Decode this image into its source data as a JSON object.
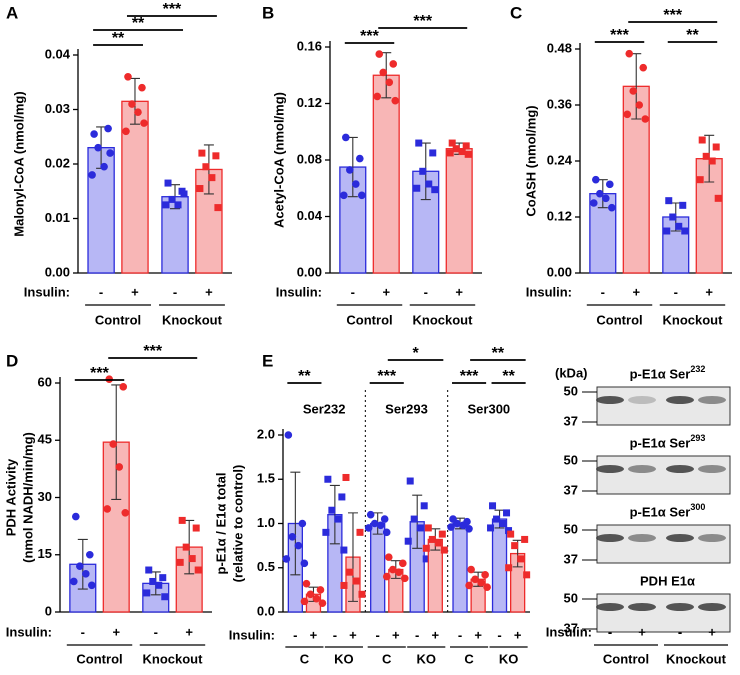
{
  "chart_data": [
    {
      "type": "bar",
      "panel": "A",
      "ylabel": "Malonyl-CoA (nmol/mg)",
      "ylim": [
        0,
        0.04
      ],
      "yticks": [
        {
          "value": 0,
          "label": "0.00"
        },
        0.01,
        0.02,
        0.03,
        0.04
      ],
      "values": [
        0.023,
        0.0315,
        0.014,
        0.019
      ],
      "errors": [
        0.0038,
        0.0042,
        0.0022,
        0.0045
      ],
      "points": [
        [
          0.0255,
          0.0265,
          0.023,
          0.0195,
          0.018,
          0.022
        ],
        [
          0.036,
          0.034,
          0.031,
          0.0295,
          0.026,
          0.0275
        ],
        [
          0.0165,
          0.015,
          0.0135,
          0.0125,
          0.0125,
          0.0145
        ],
        [
          0.022,
          0.0215,
          0.0195,
          0.0175,
          0.0155,
          0.012
        ]
      ],
      "colors": [
        "#2b2bdb",
        "#ee2b2b"
      ],
      "fills": [
        "#b7b7f5",
        "#f8b6b6"
      ],
      "brackets": [
        "**",
        "**",
        "***"
      ],
      "insulin_label": "Insulin:",
      "insulin": [
        "-",
        "+",
        "-",
        "+"
      ],
      "groups": [
        "Control",
        "Knockout"
      ]
    },
    {
      "type": "bar",
      "panel": "B",
      "ylabel": "Acetyl-CoA (nmol/mg)",
      "ylim": [
        0,
        0.16
      ],
      "yticks": [
        {
          "value": 0,
          "label": "0.00"
        },
        0.04,
        0.08,
        0.12,
        0.16
      ],
      "values": [
        0.075,
        0.14,
        0.072,
        0.088
      ],
      "errors": [
        0.021,
        0.016,
        0.02,
        0.004
      ],
      "points": [
        [
          0.096,
          0.081,
          0.073,
          0.063,
          0.055,
          0.055
        ],
        [
          0.155,
          0.148,
          0.142,
          0.135,
          0.125,
          0.122
        ],
        [
          0.092,
          0.085,
          0.072,
          0.063,
          0.06,
          0.059
        ],
        [
          0.092,
          0.09,
          0.088,
          0.086,
          0.085,
          0.084
        ]
      ],
      "colors": [
        "#2b2bdb",
        "#ee2b2b"
      ],
      "fills": [
        "#b7b7f5",
        "#f8b6b6"
      ],
      "brackets": [
        "***",
        "***"
      ],
      "insulin_label": "Insulin:",
      "insulin": [
        "-",
        "+",
        "-",
        "+"
      ],
      "groups": [
        "Control",
        "Knockout"
      ]
    },
    {
      "type": "bar",
      "panel": "C",
      "ylabel": "CoASH (nmol/mg)",
      "ylim": [
        0,
        0.48
      ],
      "yticks": [
        {
          "value": 0,
          "label": "0.00"
        },
        0.12,
        0.24,
        0.36,
        0.48
      ],
      "values": [
        0.17,
        0.4,
        0.12,
        0.245
      ],
      "errors": [
        0.03,
        0.07,
        0.03,
        0.05
      ],
      "points": [
        [
          0.2,
          0.19,
          0.17,
          0.16,
          0.15,
          0.14
        ],
        [
          0.47,
          0.44,
          0.39,
          0.36,
          0.34,
          0.33
        ],
        [
          0.155,
          0.145,
          0.12,
          0.1,
          0.09,
          0.09
        ],
        [
          0.285,
          0.27,
          0.25,
          0.24,
          0.2,
          0.16
        ]
      ],
      "colors": [
        "#2b2bdb",
        "#ee2b2b"
      ],
      "fills": [
        "#b7b7f5",
        "#f8b6b6"
      ],
      "brackets": [
        "***",
        "**",
        "***"
      ],
      "insulin_label": "Insulin:",
      "insulin": [
        "-",
        "+",
        "-",
        "+"
      ],
      "groups": [
        "Control",
        "Knockout"
      ]
    },
    {
      "type": "bar",
      "panel": "D",
      "ylabel": [
        "PDH Activity",
        "(nmol NADH/min/mg)"
      ],
      "ylim": [
        0,
        60
      ],
      "yticks": [
        0,
        15,
        30,
        45,
        60
      ],
      "values": [
        12.5,
        44.5,
        7.5,
        17
      ],
      "errors": [
        6.5,
        15,
        3,
        7
      ],
      "points": [
        [
          25,
          15,
          12,
          10,
          8,
          7
        ],
        [
          61,
          59,
          44,
          38,
          27,
          26
        ],
        [
          11,
          9,
          8,
          7,
          5,
          4
        ],
        [
          24,
          22,
          17,
          14,
          13,
          11
        ]
      ],
      "colors": [
        "#2b2bdb",
        "#ee2b2b"
      ],
      "fills": [
        "#b7b7f5",
        "#f8b6b6"
      ],
      "brackets": [
        "***",
        "***"
      ],
      "insulin_label": "Insulin:",
      "insulin": [
        "-",
        "+",
        "-",
        "+"
      ],
      "groups": [
        "Control",
        "Knockout"
      ]
    },
    {
      "type": "grouped-bar",
      "panel": "E",
      "ylabel": [
        "p-E1α / E1α total",
        "(relative to control)"
      ],
      "ylim": [
        0,
        2
      ],
      "yticks": [
        {
          "value": 0,
          "label": "0.0"
        },
        0.5,
        {
          "value": 1,
          "label": "1.0"
        },
        1.5,
        {
          "value": 2,
          "label": "2.0"
        }
      ],
      "values": [
        1.0,
        0.2,
        1.1,
        0.62,
        1.0,
        0.48,
        1.02,
        0.82,
        1.0,
        0.37,
        1.05,
        0.66
      ],
      "errors": [
        0.58,
        0.08,
        0.33,
        0.5,
        0.12,
        0.1,
        0.3,
        0.12,
        0.06,
        0.08,
        0.1,
        0.15
      ],
      "points": [
        [
          2.0,
          1.0,
          0.85,
          0.75,
          0.6,
          0.55
        ],
        [
          0.32,
          0.25,
          0.2,
          0.15,
          0.12,
          0.1
        ],
        [
          1.5,
          1.3,
          1.15,
          1.05,
          0.9,
          0.7
        ],
        [
          1.52,
          0.9,
          0.45,
          0.35,
          0.3,
          0.2
        ],
        [
          1.1,
          1.05,
          1.0,
          0.98,
          0.95,
          0.9
        ],
        [
          0.62,
          0.55,
          0.48,
          0.45,
          0.4,
          0.38
        ],
        [
          1.48,
          1.2,
          1.05,
          0.95,
          0.8,
          0.6
        ],
        [
          0.95,
          0.88,
          0.82,
          0.78,
          0.72,
          0.7
        ],
        [
          1.05,
          1.02,
          1.0,
          0.98,
          0.96,
          0.94
        ],
        [
          0.48,
          0.42,
          0.37,
          0.33,
          0.3,
          0.28
        ],
        [
          1.2,
          1.12,
          1.05,
          1.0,
          0.95,
          0.92
        ],
        [
          0.88,
          0.82,
          0.75,
          0.6,
          0.5,
          0.42
        ]
      ],
      "colors": [
        "#2b2bdb",
        "#ee2b2b"
      ],
      "fills": [
        "#b7b7f5",
        "#f8b6b6"
      ],
      "brackets": [
        "**",
        "***",
        "*",
        "***",
        "**",
        "**"
      ],
      "insulin_label": "Insulin:",
      "insulin": [
        "-",
        "+",
        "-",
        "+",
        "-",
        "+",
        "-",
        "+",
        "-",
        "+",
        "-",
        "+"
      ],
      "groups": [
        "Ser232",
        "Ser293",
        "Ser300"
      ],
      "subgroups": [
        "C",
        "KO",
        "C",
        "KO",
        "C",
        "KO"
      ]
    }
  ],
  "blot": {
    "unit": "(kDa)",
    "rows": [
      {
        "label": "p-E1α Ser",
        "sup": "232",
        "markers": [
          "50",
          "37"
        ]
      },
      {
        "label": "p-E1α Ser",
        "sup": "293",
        "markers": [
          "50",
          "37"
        ]
      },
      {
        "label": "p-E1α Ser",
        "sup": "300",
        "markers": [
          "50",
          "37"
        ]
      },
      {
        "label": "PDH E1α",
        "markers": [
          "50",
          "37"
        ]
      }
    ],
    "insulin_label": "Insulin:",
    "insulin": [
      "-",
      "+",
      "-",
      "+"
    ],
    "groups": [
      "Control",
      "Knockout"
    ]
  }
}
